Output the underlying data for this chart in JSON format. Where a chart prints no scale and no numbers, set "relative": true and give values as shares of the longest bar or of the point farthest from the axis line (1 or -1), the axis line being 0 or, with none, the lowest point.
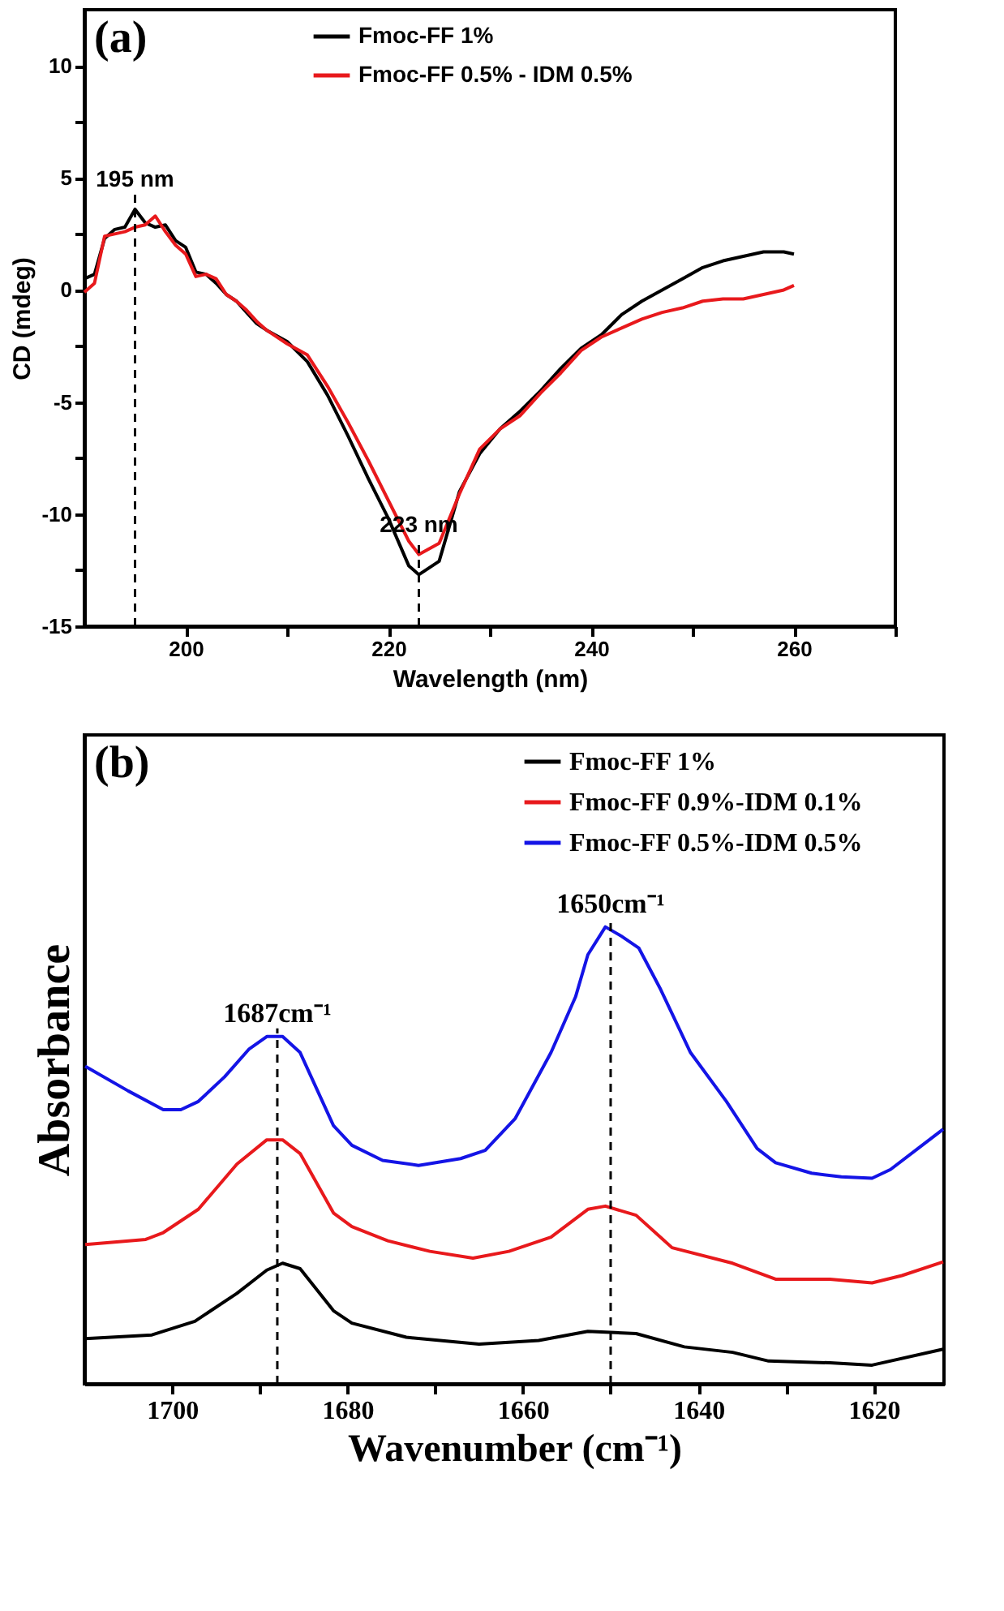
{
  "chart_data": [
    {
      "type": "line",
      "xlabel": "Wavelength (nm)",
      "ylabel": "CD (mdeg)",
      "xlim": [
        190,
        270
      ],
      "ylim": [
        -15,
        12.5
      ],
      "xticks": [
        200,
        {
          "value": 210,
          "label": null
        },
        220,
        {
          "value": 230,
          "label": null
        },
        240,
        {
          "value": 250,
          "label": null
        },
        260,
        {
          "value": 270,
          "label": null
        }
      ],
      "yticks": [
        -15,
        {
          "value": -12.5,
          "label": null
        },
        -10,
        {
          "value": -7.5,
          "label": null
        },
        -5,
        {
          "value": -2.5,
          "label": null
        },
        0,
        {
          "value": 2.5,
          "label": null
        },
        5,
        {
          "value": 7.5,
          "label": null
        },
        10
      ],
      "legend": "top",
      "grid": false,
      "annotations": [
        "(a)",
        {
          "text": "195 nm",
          "x": 195,
          "y": 3.6
        },
        {
          "text": "223 nm",
          "x": 223,
          "y": -12.7
        }
      ],
      "ref_lines": [
        {
          "axis": "x",
          "value": 195,
          "line_style": "dashed",
          "color": "#000000"
        },
        {
          "axis": "x",
          "value": 223,
          "line_style": "dashed",
          "color": "#000000"
        }
      ],
      "series": [
        {
          "name": "Fmoc-FF 1%",
          "color": "#000000",
          "x": [
            190,
            191,
            192,
            193,
            194,
            195,
            196,
            197,
            198,
            199,
            200,
            201,
            202,
            203,
            204,
            205,
            206,
            207,
            208,
            210,
            212,
            214,
            216,
            218,
            220,
            222,
            223,
            225,
            227,
            229,
            231,
            233,
            235,
            237,
            239,
            241,
            243,
            245,
            247,
            249,
            251,
            253,
            255,
            257,
            259,
            260
          ],
          "values": [
            0.5,
            0.7,
            2.3,
            2.7,
            2.8,
            3.6,
            3.0,
            2.8,
            2.9,
            2.2,
            1.9,
            0.8,
            0.7,
            0.3,
            -0.2,
            -0.5,
            -1.0,
            -1.5,
            -1.8,
            -2.3,
            -3.2,
            -4.7,
            -6.5,
            -8.4,
            -10.2,
            -12.3,
            -12.7,
            -12.1,
            -9.0,
            -7.3,
            -6.2,
            -5.4,
            -4.5,
            -3.5,
            -2.6,
            -2.0,
            -1.1,
            -0.5,
            0.0,
            0.5,
            1.0,
            1.3,
            1.5,
            1.7,
            1.7,
            1.6
          ]
        },
        {
          "name": "Fmoc-FF 0.5% - IDM 0.5%",
          "color": "#e8191c",
          "x": [
            190,
            191,
            192,
            193,
            194,
            195,
            196,
            197,
            198,
            199,
            200,
            201,
            202,
            203,
            204,
            205,
            206,
            207,
            208,
            210,
            212,
            214,
            216,
            218,
            220,
            222,
            223,
            225,
            227,
            229,
            231,
            233,
            235,
            237,
            239,
            241,
            243,
            245,
            247,
            249,
            251,
            253,
            255,
            257,
            259,
            260
          ],
          "values": [
            -0.1,
            0.3,
            2.4,
            2.5,
            2.6,
            2.8,
            2.9,
            3.3,
            2.6,
            2.0,
            1.6,
            0.6,
            0.7,
            0.5,
            -0.2,
            -0.5,
            -0.9,
            -1.4,
            -1.8,
            -2.4,
            -2.9,
            -4.3,
            -5.9,
            -7.6,
            -9.4,
            -11.2,
            -11.8,
            -11.3,
            -9.1,
            -7.1,
            -6.2,
            -5.6,
            -4.6,
            -3.7,
            -2.7,
            -2.1,
            -1.7,
            -1.3,
            -1.0,
            -0.8,
            -0.5,
            -0.4,
            -0.4,
            -0.2,
            0.0,
            0.2
          ]
        }
      ]
    },
    {
      "type": "line",
      "relative": true,
      "xlabel": "Wavenumber (cm⁻¹)",
      "ylabel": "Absorbance",
      "xlim": [
        1710,
        1612
      ],
      "xticks": [
        1700,
        {
          "value": 1690,
          "label": null
        },
        1680,
        {
          "value": 1670,
          "label": null
        },
        1660,
        {
          "value": 1650,
          "label": null
        },
        1640,
        {
          "value": 1630,
          "label": null
        },
        1620
      ],
      "legend": "top right",
      "grid": false,
      "annotations": [
        "(b)",
        {
          "text": "1687cm⁻¹",
          "x": 1688,
          "y": 0.76
        },
        {
          "text": "1650cm⁻¹",
          "x": 1650,
          "y": 1.0
        }
      ],
      "ref_lines": [
        {
          "axis": "x",
          "value": 1688,
          "line_style": "dashed",
          "color": "#000000"
        },
        {
          "axis": "x",
          "value": 1650,
          "line_style": "dashed",
          "color": "#000000"
        }
      ],
      "series": [
        {
          "name": "Fmoc-FF 1%",
          "color": "#000000",
          "x": [
            1709.9,
            1702.3,
            1697.4,
            1692.6,
            1689.2,
            1687.4,
            1685.4,
            1681.6,
            1679.5,
            1673.3,
            1665,
            1658.2,
            1652.6,
            1647.1,
            1641.6,
            1636.1,
            1632,
            1625,
            1620.2,
            1612.1
          ],
          "values": [
            0.099,
            0.107,
            0.137,
            0.198,
            0.249,
            0.264,
            0.252,
            0.16,
            0.133,
            0.102,
            0.087,
            0.095,
            0.115,
            0.11,
            0.081,
            0.069,
            0.05,
            0.046,
            0.041,
            0.076
          ]
        },
        {
          "name": "Fmoc-FF 0.9%-IDM 0.1%",
          "color": "#e8191c",
          "x": [
            1709.9,
            1703,
            1701,
            1697,
            1692.6,
            1689.2,
            1687.4,
            1685.4,
            1681.6,
            1679.5,
            1675.4,
            1670.6,
            1665.7,
            1661.6,
            1656.8,
            1652.6,
            1650.6,
            1647.1,
            1643,
            1636.1,
            1631.2,
            1625,
            1620.2,
            1616.8,
            1612.1
          ],
          "values": [
            0.305,
            0.316,
            0.331,
            0.382,
            0.481,
            0.534,
            0.534,
            0.504,
            0.374,
            0.344,
            0.313,
            0.29,
            0.275,
            0.29,
            0.321,
            0.382,
            0.389,
            0.369,
            0.298,
            0.264,
            0.229,
            0.229,
            0.221,
            0.237,
            0.267
          ]
        },
        {
          "name": "Fmoc-FF 0.5%-IDM 0.5%",
          "color": "#1414e6",
          "x": [
            1709.9,
            1705,
            1701,
            1699,
            1697,
            1694,
            1691.2,
            1689.2,
            1687.4,
            1685.4,
            1681.6,
            1679.5,
            1676,
            1671.9,
            1667.1,
            1664.3,
            1660.9,
            1656.8,
            1654,
            1652.6,
            1650.6,
            1648.8,
            1646.8,
            1644.3,
            1640.9,
            1636.8,
            1633.3,
            1631.2,
            1627.1,
            1623.7,
            1620.2,
            1618.1,
            1614.7,
            1612.1
          ],
          "values": [
            0.695,
            0.641,
            0.6,
            0.6,
            0.618,
            0.672,
            0.733,
            0.76,
            0.76,
            0.725,
            0.565,
            0.522,
            0.489,
            0.478,
            0.493,
            0.511,
            0.58,
            0.725,
            0.847,
            0.939,
            1.0,
            0.98,
            0.954,
            0.863,
            0.725,
            0.618,
            0.515,
            0.484,
            0.461,
            0.453,
            0.45,
            0.469,
            0.519,
            0.557
          ]
        }
      ]
    }
  ]
}
